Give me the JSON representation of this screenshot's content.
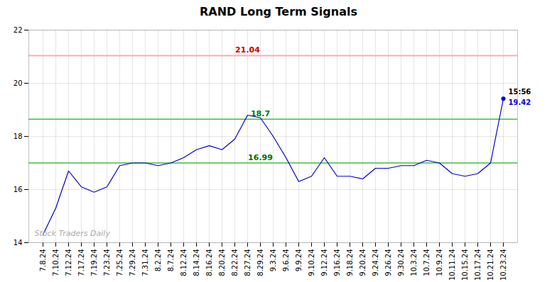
{
  "chart_data": {
    "type": "line",
    "title": "RAND Long Term Signals",
    "categories": [
      "7.8.24",
      "7.10.24",
      "7.12.24",
      "7.17.24",
      "7.19.24",
      "7.23.24",
      "7.25.24",
      "7.29.24",
      "7.31.24",
      "8.2.24",
      "8.7.24",
      "8.12.24",
      "8.14.24",
      "8.16.24",
      "8.20.24",
      "8.22.24",
      "8.27.24",
      "8.29.24",
      "9.3.24",
      "9.6.24",
      "9.9.24",
      "9.10.24",
      "9.12.24",
      "9.16.24",
      "9.18.24",
      "9.20.24",
      "9.24.24",
      "9.26.24",
      "9.30.24",
      "10.3.24",
      "10.7.24",
      "10.9.24",
      "10.11.24",
      "10.15.24",
      "10.17.24",
      "10.21.24",
      "10.23.24"
    ],
    "values": [
      14.3,
      15.3,
      16.7,
      16.1,
      15.9,
      16.1,
      16.9,
      17.0,
      17.0,
      16.9,
      17.0,
      17.2,
      17.5,
      17.65,
      17.5,
      17.9,
      18.8,
      18.7,
      18.0,
      17.2,
      16.3,
      16.5,
      17.2,
      16.5,
      16.5,
      16.4,
      16.8,
      16.8,
      16.9,
      16.9,
      17.1,
      17.0,
      16.6,
      16.5,
      16.6,
      17.0,
      19.42
    ],
    "color": "#0000cc",
    "ylim": [
      14,
      22
    ],
    "yticks": [
      14,
      16,
      18,
      20,
      22
    ],
    "grid": true,
    "reference_lines": [
      {
        "value": 21.04,
        "color": "#ffaaaa",
        "label": "21.04",
        "label_color": "#cc0000"
      },
      {
        "value": 18.65,
        "color": "#44bb44",
        "label": "18.7",
        "label_color": "#007700"
      },
      {
        "value": 17.0,
        "color": "#44bb44",
        "label": "16.99",
        "label_color": "#007700"
      }
    ],
    "annotations": [
      {
        "text": "15:56",
        "color": "#000000"
      },
      {
        "text": "19.42",
        "color": "#0000dd"
      }
    ],
    "watermark": "Stock Traders Daily"
  }
}
